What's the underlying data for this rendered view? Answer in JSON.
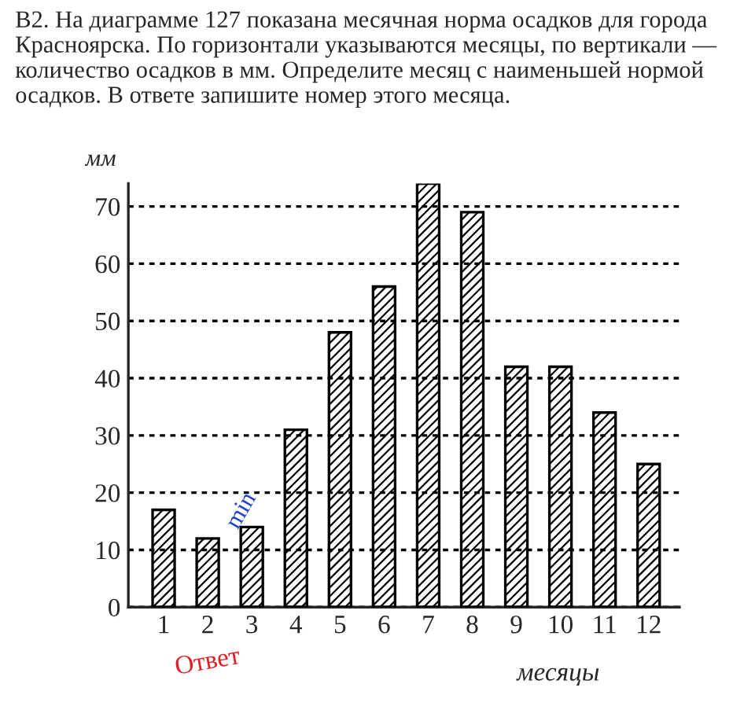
{
  "chart_data": {
    "type": "bar",
    "title": "B2. На диаграмме 127 показана месячная норма осадков для города Красноярска. По горизонтали указываются месяцы, по вертикали — количество осадков в мм. Определите месяц с наименьшей нормой осадков. В ответе запишите номер этого месяца.",
    "xlabel": "месяцы",
    "ylabel": "мм",
    "categories": [
      "1",
      "2",
      "3",
      "4",
      "5",
      "6",
      "7",
      "8",
      "9",
      "10",
      "11",
      "12"
    ],
    "values": [
      17,
      12,
      14,
      31,
      48,
      56,
      74,
      69,
      42,
      42,
      34,
      25
    ],
    "color": "#000000",
    "ylim": [
      0,
      74
    ],
    "yticks": [
      0,
      10,
      20,
      30,
      40,
      50,
      60,
      70
    ],
    "grid": "y",
    "legend": false,
    "annotations": [
      "min",
      "Ответ"
    ]
  }
}
